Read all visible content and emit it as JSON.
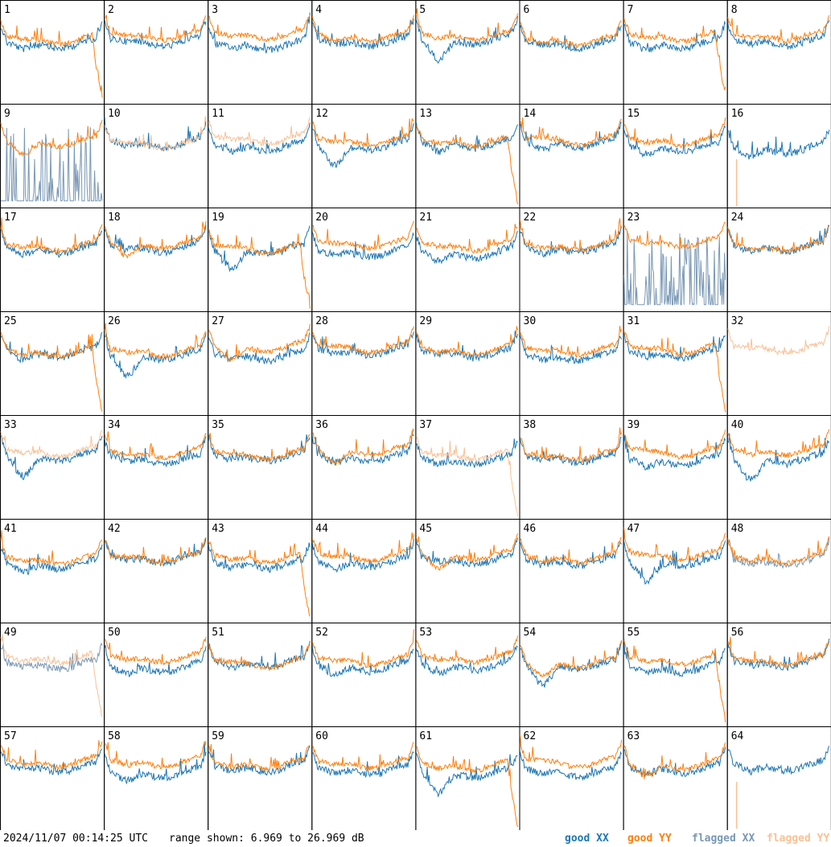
{
  "timestamp": "2024/11/07 00:14:25 UTC",
  "range_text": "range shown: 6.969 to 26.969 dB",
  "legend": [
    {
      "label": "good XX",
      "color": "#1f77b4"
    },
    {
      "label": "good YY",
      "color": "#ff7f0e"
    },
    {
      "label": "flagged XX",
      "color": "#7a98b5"
    },
    {
      "label": "flagged YY",
      "color": "#f8c196"
    }
  ],
  "chart_data": {
    "type": "line",
    "layout": "8x8 small multiples",
    "range_db": [
      6.969,
      26.969
    ],
    "tile_labels": [
      "1",
      "2",
      "3",
      "4",
      "5",
      "6",
      "7",
      "8",
      "9",
      "10",
      "11",
      "12",
      "13",
      "14",
      "15",
      "16",
      "17",
      "18",
      "19",
      "20",
      "21",
      "22",
      "23",
      "24",
      "25",
      "26",
      "27",
      "28",
      "29",
      "30",
      "31",
      "32",
      "33",
      "34",
      "35",
      "36",
      "37",
      "38",
      "39",
      "40",
      "41",
      "42",
      "43",
      "44",
      "45",
      "46",
      "47",
      "48",
      "49",
      "50",
      "51",
      "52",
      "53",
      "54",
      "55",
      "56",
      "57",
      "58",
      "59",
      "60",
      "61",
      "62",
      "63",
      "64"
    ],
    "note_flagged_xx_tiles": [
      9,
      23,
      48,
      49
    ],
    "note_flagged_yy_tiles": [
      10,
      11,
      16,
      32,
      33,
      37,
      49,
      64
    ],
    "note_missing_yy_tiles": [
      16,
      64
    ],
    "note_missing_xx_tiles": [
      32
    ]
  }
}
